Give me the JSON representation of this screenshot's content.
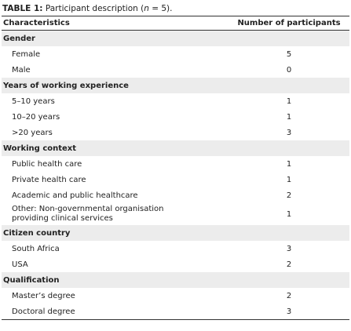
{
  "title": {
    "label": "TABLE 1:",
    "before": "Participant description (",
    "variable": "n",
    "after": " = 5)."
  },
  "table": {
    "columns": [
      "Characteristics",
      "Number of participants"
    ],
    "sections": [
      {
        "heading": "Gender",
        "rows": [
          [
            "Female",
            5
          ],
          [
            "Male",
            0
          ]
        ]
      },
      {
        "heading": "Years of working experience",
        "rows": [
          [
            "5–10 years",
            1
          ],
          [
            "10–20 years",
            1
          ],
          [
            ">20 years",
            3
          ]
        ]
      },
      {
        "heading": "Working context",
        "rows": [
          [
            "Public health care",
            1
          ],
          [
            "Private health care",
            1
          ],
          [
            "Academic and public healthcare",
            2
          ],
          [
            "Other: Non-governmental organisation providing clinical services",
            1
          ]
        ]
      },
      {
        "heading": "Citizen country",
        "rows": [
          [
            "South Africa",
            3
          ],
          [
            "USA",
            2
          ]
        ]
      },
      {
        "heading": "Qualification",
        "rows": [
          [
            "Master’s degree",
            2
          ],
          [
            "Doctoral degree",
            3
          ]
        ]
      }
    ]
  }
}
